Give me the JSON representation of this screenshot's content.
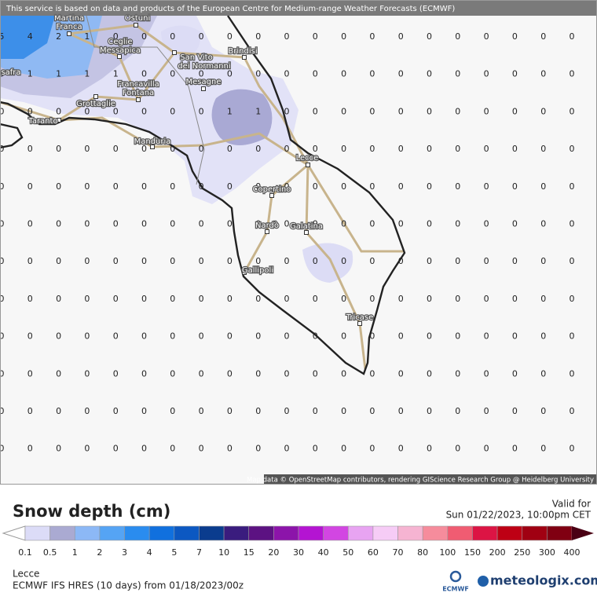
{
  "header": {
    "notice": "This service is based on data and products of the European Centre for Medium-range Weather Forecasts (ECMWF)",
    "attribution": "Map data © OpenStreetMap contributors, rendering GIScience Research Group @ Heidelberg University"
  },
  "map": {
    "grid": [
      [
        5,
        4,
        2,
        1,
        0,
        0,
        0,
        0,
        0,
        0,
        0,
        0,
        0,
        0,
        0,
        0,
        0,
        0,
        0,
        0,
        0
      ],
      [
        0,
        1,
        1,
        1,
        1,
        0,
        0,
        0,
        0,
        0,
        0,
        0,
        0,
        0,
        0,
        0,
        0,
        0,
        0,
        0,
        0
      ],
      [
        0,
        0,
        0,
        0,
        0,
        0,
        0,
        0,
        1,
        1,
        0,
        0,
        0,
        0,
        0,
        0,
        0,
        0,
        0,
        0,
        0
      ],
      [
        0,
        0,
        0,
        0,
        0,
        0,
        0,
        0,
        0,
        0,
        0,
        0,
        0,
        0,
        0,
        0,
        0,
        0,
        0,
        0,
        0
      ],
      [
        0,
        0,
        0,
        0,
        0,
        0,
        0,
        0,
        0,
        0,
        0,
        0,
        0,
        0,
        0,
        0,
        0,
        0,
        0,
        0,
        0
      ],
      [
        0,
        0,
        0,
        0,
        0,
        0,
        0,
        0,
        0,
        0,
        0,
        0,
        0,
        0,
        0,
        0,
        0,
        0,
        0,
        0,
        0
      ],
      [
        0,
        0,
        0,
        0,
        0,
        0,
        0,
        0,
        0,
        0,
        0,
        0,
        0,
        0,
        0,
        0,
        0,
        0,
        0,
        0,
        0
      ],
      [
        0,
        0,
        0,
        0,
        0,
        0,
        0,
        0,
        0,
        0,
        0,
        0,
        0,
        0,
        0,
        0,
        0,
        0,
        0,
        0,
        0
      ],
      [
        0,
        0,
        0,
        0,
        0,
        0,
        0,
        0,
        0,
        0,
        0,
        0,
        0,
        0,
        0,
        0,
        0,
        0,
        0,
        0,
        0
      ],
      [
        0,
        0,
        0,
        0,
        0,
        0,
        0,
        0,
        0,
        0,
        0,
        0,
        0,
        0,
        0,
        0,
        0,
        0,
        0,
        0,
        0
      ],
      [
        0,
        0,
        0,
        0,
        0,
        0,
        0,
        0,
        0,
        0,
        0,
        0,
        0,
        0,
        0,
        0,
        0,
        0,
        0,
        0,
        0
      ],
      [
        0,
        0,
        0,
        0,
        0,
        0,
        0,
        0,
        0,
        0,
        0,
        0,
        0,
        0,
        0,
        0,
        0,
        0,
        0,
        0,
        0
      ]
    ],
    "towns": [
      [
        "Martina",
        "Franca"
      ],
      [
        "Ostuni"
      ],
      [
        "Ceglie",
        "Messapica"
      ],
      [
        "Brindisi"
      ],
      [
        "San Vito",
        "dei Normanni"
      ],
      [
        "Mesagne"
      ],
      [
        "Francavilla",
        "Fontana"
      ],
      [
        "Grottaglie"
      ],
      [
        "Taranto"
      ],
      [
        "safra"
      ],
      [
        "Manduria"
      ],
      [
        "Lecce"
      ],
      [
        "Copertino"
      ],
      [
        "Nardò"
      ],
      [
        "Galatina"
      ],
      [
        "Gallipoli"
      ],
      [
        "Tricase"
      ]
    ]
  },
  "legend": {
    "title": "Snow depth (cm)",
    "valid_label": "Valid for",
    "valid_time": "Sun 01/22/2023, 10:00pm CET",
    "ticks": [
      "0.1",
      "0.5",
      "1",
      "2",
      "3",
      "4",
      "5",
      "7",
      "10",
      "15",
      "20",
      "30",
      "40",
      "50",
      "60",
      "70",
      "80",
      "100",
      "150",
      "200",
      "250",
      "300",
      "400"
    ],
    "colors": [
      "#dcdcf7",
      "#aaaad2",
      "#8cb8f6",
      "#55a4f4",
      "#2a8cef",
      "#1070de",
      "#0c58c2",
      "#0a3c8e",
      "#3a1c7e",
      "#5c1282",
      "#8c14aa",
      "#b414d2",
      "#d246e2",
      "#e8a4f2",
      "#f6ccf6",
      "#f6b4d2",
      "#f68c9c",
      "#f05c72",
      "#dc1444",
      "#be0014",
      "#a00012",
      "#800012"
    ],
    "arrow_low": "#ffffff",
    "arrow_high": "#4a0014"
  },
  "footer": {
    "location": "Lecce",
    "model": "ECMWF IFS HRES (10 days) from 01/18/2023/00z",
    "ecmwf": "ECMWF",
    "brand": "meteologix.com"
  }
}
